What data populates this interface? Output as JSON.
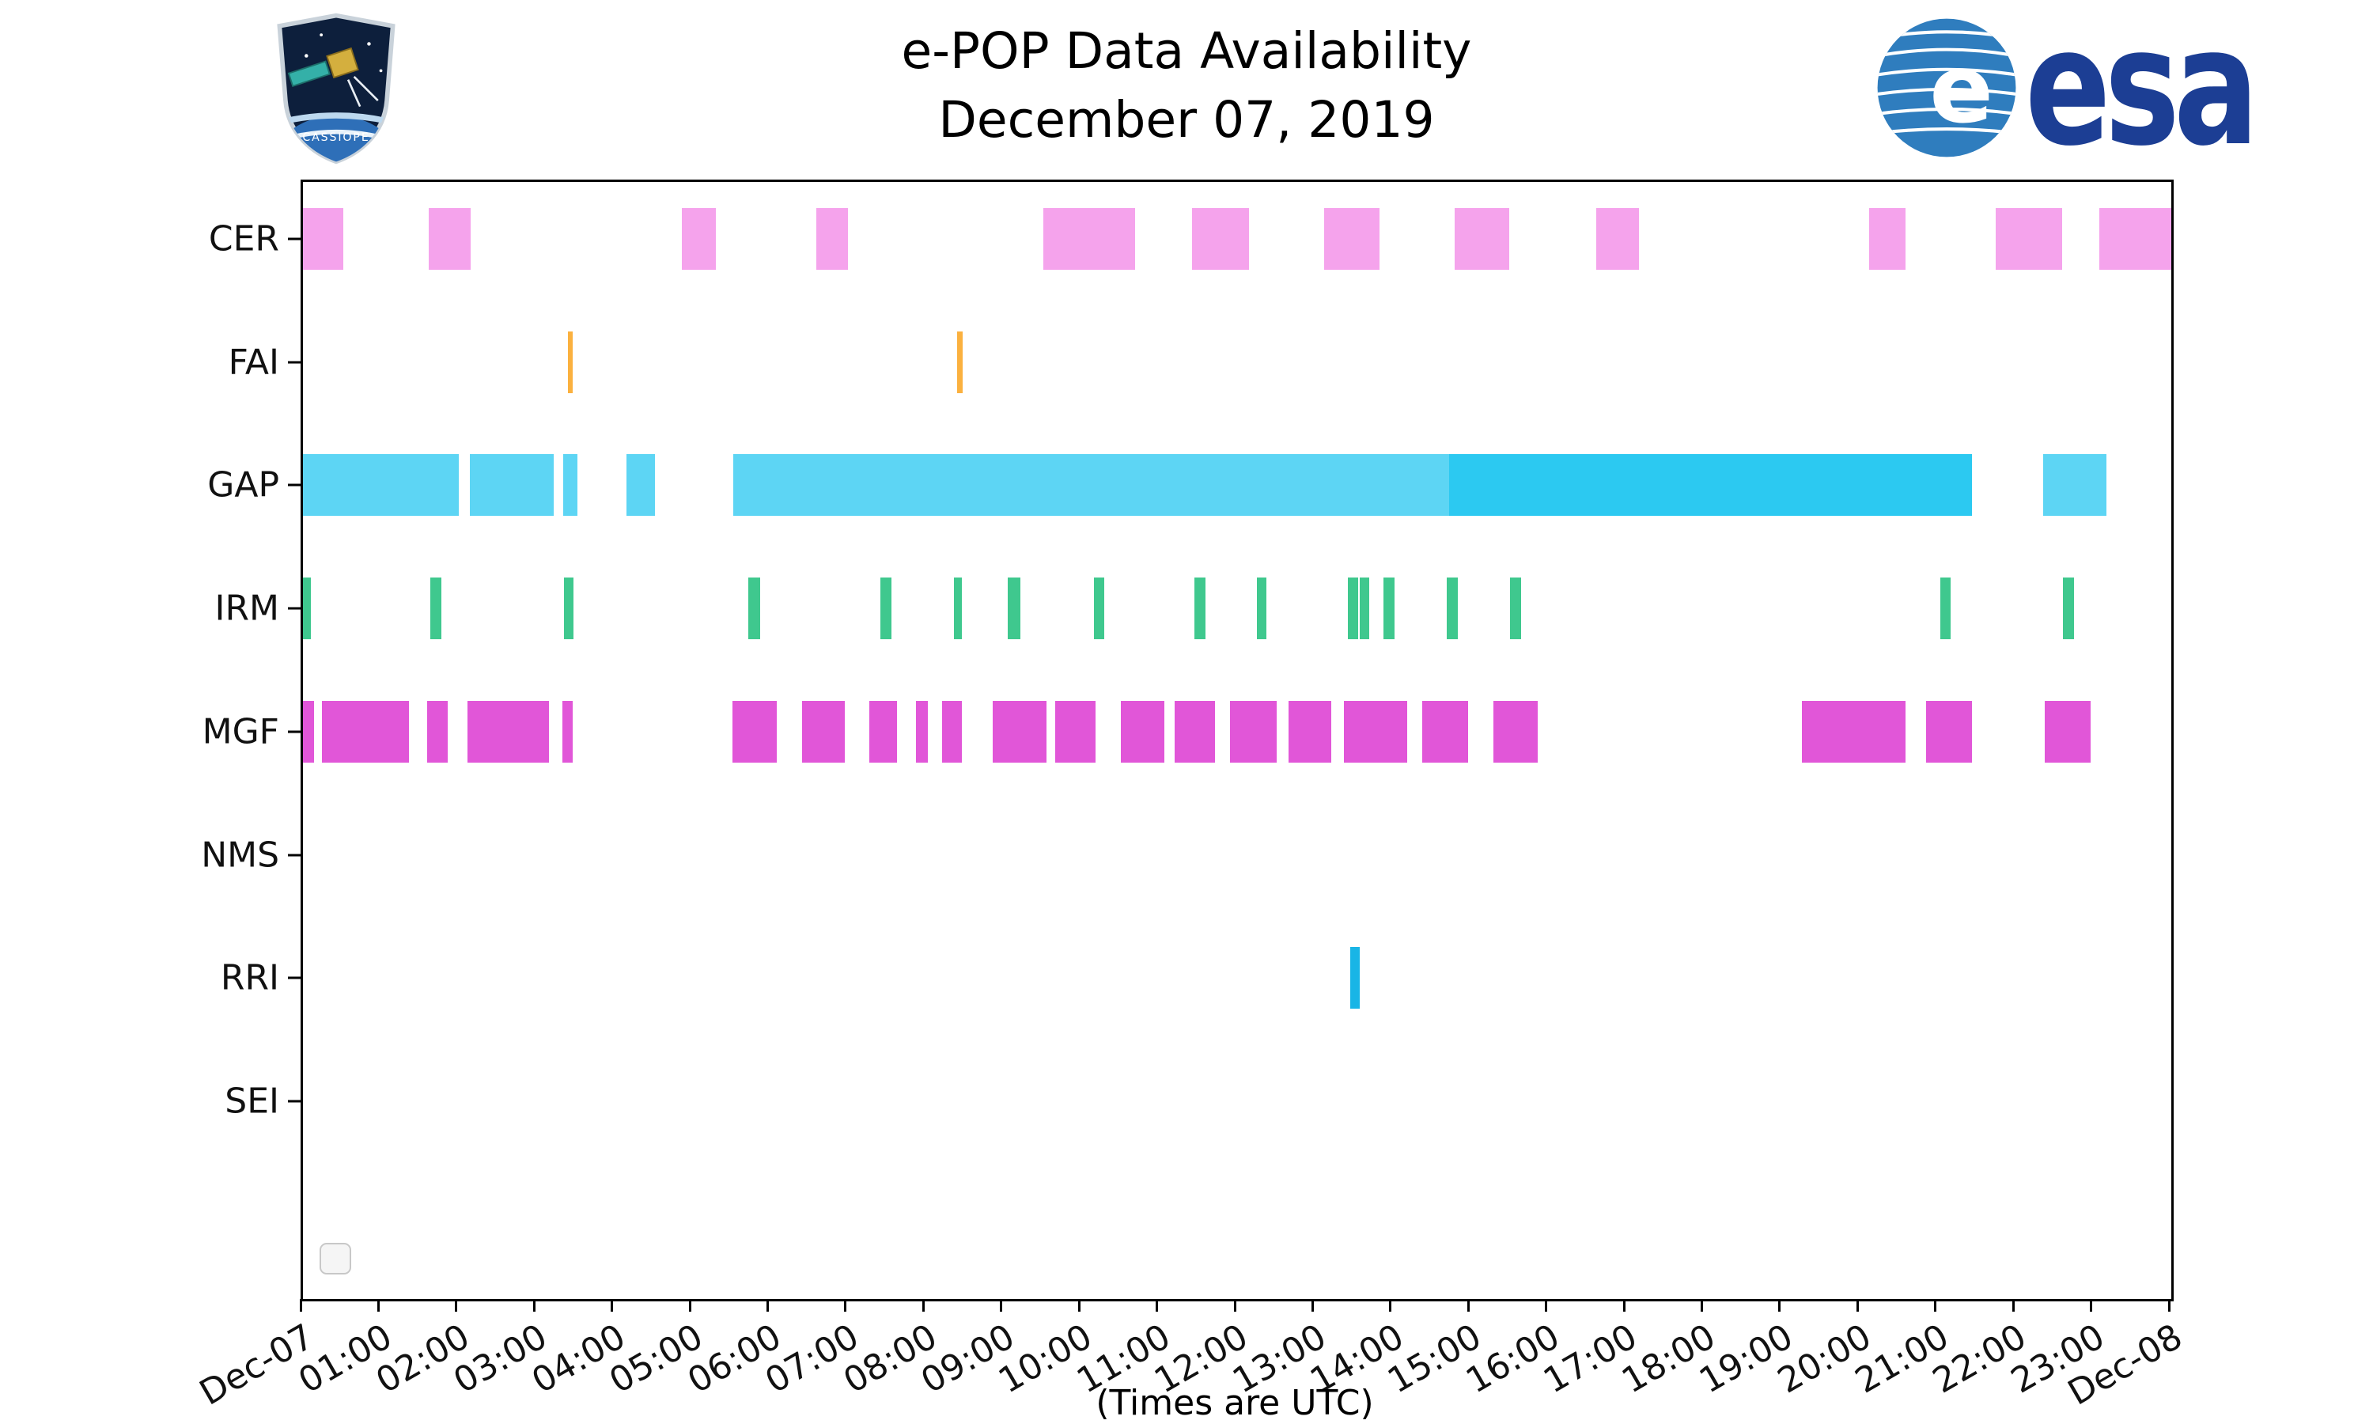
{
  "logos": {
    "cassiope_patch": {
      "text": "CASSIOPE"
    },
    "esa": {
      "wordmark": "esa"
    }
  },
  "chart_data": {
    "type": "bar",
    "variant": "availability-timeline (broken horizontal bars per instrument)",
    "title": "e-POP Data Availability",
    "subtitle": "December 07, 2019",
    "xlabel": "(Times are UTC)",
    "xlim_hours": [
      0,
      24
    ],
    "grid": false,
    "x_tick_labels": [
      "Dec-07",
      "01:00",
      "02:00",
      "03:00",
      "04:00",
      "05:00",
      "06:00",
      "07:00",
      "08:00",
      "09:00",
      "10:00",
      "11:00",
      "12:00",
      "13:00",
      "14:00",
      "15:00",
      "16:00",
      "17:00",
      "18:00",
      "19:00",
      "20:00",
      "21:00",
      "22:00",
      "23:00",
      "Dec-08"
    ],
    "series": [
      {
        "name": "CER",
        "color": "#f5a3ec",
        "intervals": [
          [
            0.0,
            0.52
          ],
          [
            1.62,
            2.15
          ],
          [
            4.87,
            5.3
          ],
          [
            6.59,
            7.0
          ],
          [
            9.51,
            10.69
          ],
          [
            11.42,
            12.15
          ],
          [
            13.12,
            13.83
          ],
          [
            14.79,
            15.5
          ],
          [
            16.61,
            17.16
          ],
          [
            20.12,
            20.59
          ],
          [
            21.74,
            22.6
          ],
          [
            23.08,
            24.0
          ]
        ]
      },
      {
        "name": "FAI",
        "color": "#fbb13f",
        "intervals": [
          [
            3.4,
            3.47
          ],
          [
            8.4,
            8.47
          ]
        ]
      },
      {
        "name": "GAP",
        "color": "#5dd5f4",
        "intervals": [
          [
            0.0,
            2.0
          ],
          [
            2.14,
            3.22
          ],
          [
            3.34,
            3.53
          ],
          [
            4.16,
            4.52
          ],
          [
            5.53,
            14.72
          ],
          [
            14.72,
            21.44,
            "#2cc9f1"
          ],
          [
            22.35,
            23.17
          ]
        ]
      },
      {
        "name": "IRM",
        "color": "#3fc88e",
        "intervals": [
          [
            0.0,
            0.1
          ],
          [
            1.64,
            1.78
          ],
          [
            3.35,
            3.48
          ],
          [
            5.72,
            5.87
          ],
          [
            7.42,
            7.56
          ],
          [
            8.36,
            8.46
          ],
          [
            9.05,
            9.22
          ],
          [
            10.16,
            10.29
          ],
          [
            11.45,
            11.59
          ],
          [
            12.25,
            12.38
          ],
          [
            13.42,
            13.55
          ],
          [
            13.58,
            13.7
          ],
          [
            13.88,
            14.02
          ],
          [
            14.69,
            14.83
          ],
          [
            15.51,
            15.65
          ],
          [
            21.03,
            21.17
          ],
          [
            22.61,
            22.75
          ]
        ]
      },
      {
        "name": "MGF",
        "color": "#e156d8",
        "intervals": [
          [
            0.0,
            0.14
          ],
          [
            0.24,
            1.36
          ],
          [
            1.6,
            1.86
          ],
          [
            2.11,
            3.16
          ],
          [
            3.33,
            3.47
          ],
          [
            5.52,
            6.09
          ],
          [
            6.41,
            6.96
          ],
          [
            7.28,
            7.63
          ],
          [
            7.87,
            8.03
          ],
          [
            8.21,
            8.46
          ],
          [
            8.86,
            9.55
          ],
          [
            9.66,
            10.18
          ],
          [
            10.51,
            11.07
          ],
          [
            11.2,
            11.72
          ],
          [
            11.91,
            12.51
          ],
          [
            12.66,
            13.21
          ],
          [
            13.37,
            14.18
          ],
          [
            14.38,
            14.97
          ],
          [
            15.29,
            15.86
          ],
          [
            19.25,
            20.59
          ],
          [
            20.85,
            21.44
          ],
          [
            22.37,
            22.96
          ]
        ]
      },
      {
        "name": "NMS",
        "color": "#999999",
        "intervals": []
      },
      {
        "name": "RRI",
        "color": "#19b5e6",
        "intervals": [
          [
            13.45,
            13.58
          ]
        ]
      },
      {
        "name": "SEI",
        "color": "#999999",
        "intervals": []
      }
    ]
  }
}
